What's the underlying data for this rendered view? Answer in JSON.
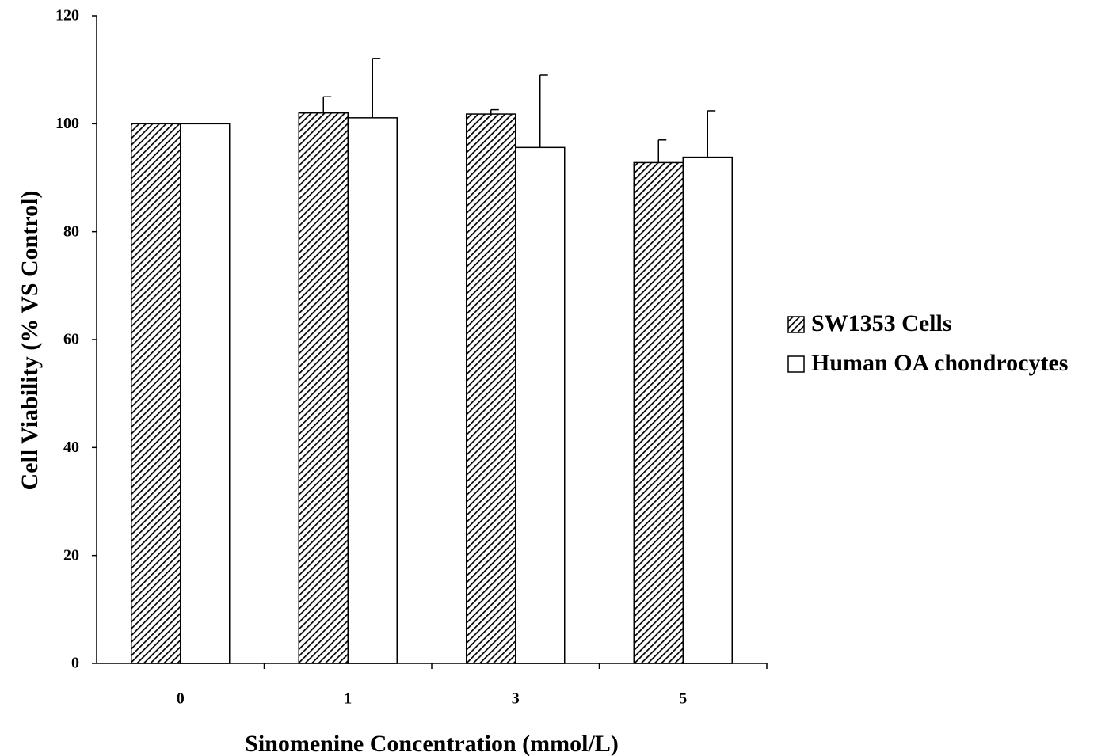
{
  "chart_data": {
    "type": "bar",
    "xlabel": "Sinomenine Concentration (mmol/L)",
    "ylabel": "Cell Viability  (% VS Control)",
    "ylim": [
      0,
      120
    ],
    "yticks": [
      "0",
      "20",
      "40",
      "60",
      "80",
      "100",
      "120"
    ],
    "categories": [
      "0",
      "1",
      "3",
      "5"
    ],
    "series": [
      {
        "name": "SW1353 Cells",
        "values": [
          100,
          102,
          101.8,
          92.8
        ],
        "errors": [
          0,
          3,
          0.8,
          4.2
        ],
        "fill": "hatched"
      },
      {
        "name": "Human OA chondrocytes",
        "values": [
          100,
          101.1,
          95.6,
          93.8
        ],
        "errors": [
          0,
          11,
          13.4,
          8.6
        ],
        "fill": "white"
      }
    ],
    "legend_position": "right",
    "grid": false
  },
  "colors": {
    "axis": "#000000",
    "bar_stroke": "#000000",
    "hatch": "#000000",
    "background": "#ffffff"
  }
}
